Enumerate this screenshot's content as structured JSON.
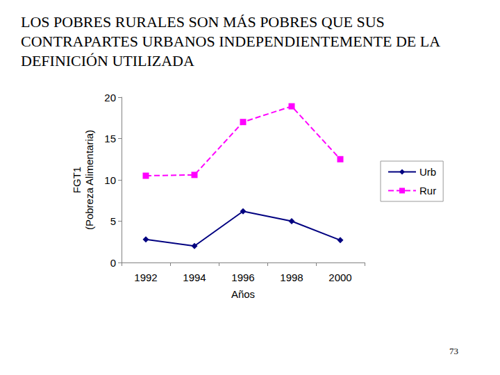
{
  "chart_data": {
    "type": "line",
    "title": "LOS POBRES RURALES SON MÁS POBRES QUE SUS CONTRAPARTES URBANOS INDEPENDIENTEMENTE DE LA DEFINICIÓN UTILIZADA",
    "xlabel": "Años",
    "ylabel": "FGT1\n(Pobreza Alimentaria)",
    "categories": [
      "1992",
      "1994",
      "1996",
      "1998",
      "2000"
    ],
    "series": [
      {
        "name": "Urb",
        "color": "#000080",
        "marker": "diamond",
        "line_style": "solid",
        "values": [
          2.8,
          2.0,
          6.2,
          5.0,
          2.7
        ]
      },
      {
        "name": "Rur",
        "color": "#ff00ff",
        "marker": "square",
        "line_style": "dashed",
        "values": [
          10.5,
          10.6,
          17.0,
          18.9,
          12.5
        ]
      }
    ],
    "ylim": [
      0,
      20
    ],
    "yticks": [
      0,
      5,
      10,
      15,
      20
    ],
    "grid": false,
    "legend": "right",
    "annotations": [
      "73"
    ]
  }
}
